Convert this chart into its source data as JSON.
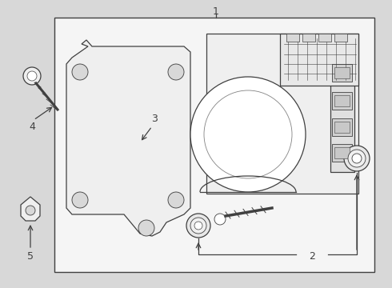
{
  "bg_color": "#d8d8d8",
  "box_color": "#f5f5f5",
  "line_color": "#404040",
  "label1": "1",
  "label2": "2",
  "label3": "3",
  "label4": "4",
  "label5": "5"
}
